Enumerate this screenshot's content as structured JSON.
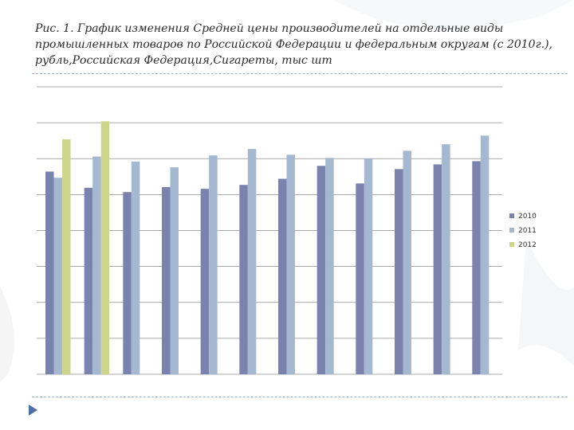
{
  "title": "Рис. 1. График изменения Средней цены производителей на отдельные виды промышленных товаров по Российской Федерации и федеральным округам (с 2010г.), рубль,Российская Федерация,Сигареты, тыс шт",
  "colors": {
    "2010": "#7a83ad",
    "2011": "#a5b8d1",
    "2012": "#cdd68a",
    "grid": "#8c8c8c",
    "rule": "#9fb3c8",
    "arrow": "#4f6fa8"
  },
  "chart_data": {
    "type": "bar",
    "categories": [
      "",
      "",
      "",
      "",
      "",
      "",
      "",
      "",
      "",
      "",
      "",
      ""
    ],
    "series": [
      {
        "name": "2010",
        "values": [
          5.64,
          5.19,
          5.07,
          5.21,
          5.16,
          5.27,
          5.44,
          5.8,
          5.31,
          5.71,
          5.84,
          5.93
        ]
      },
      {
        "name": "2011",
        "values": [
          5.47,
          6.06,
          5.92,
          5.76,
          6.09,
          6.27,
          6.11,
          6.02,
          6.0,
          6.22,
          6.4,
          6.64
        ]
      },
      {
        "name": "2012",
        "values": [
          6.54,
          7.04,
          null,
          null,
          null,
          null,
          null,
          null,
          null,
          null,
          null,
          null
        ]
      }
    ],
    "ylim": [
      0,
      8
    ],
    "grid": true,
    "legend": "right"
  }
}
